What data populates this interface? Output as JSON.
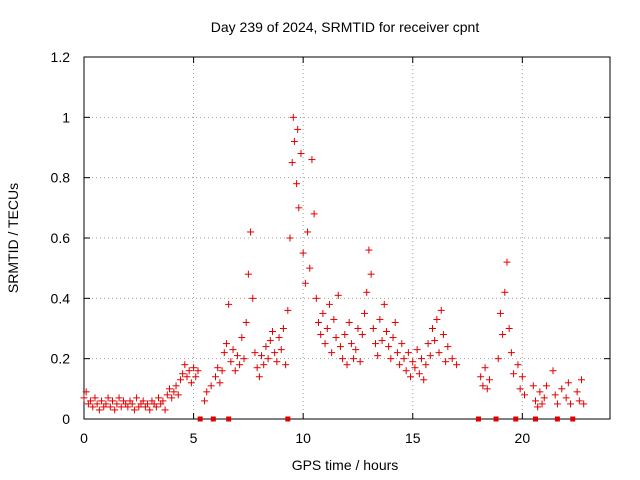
{
  "chart_data": {
    "type": "scatter",
    "title": "Day 239 of 2024, SRMTID for receiver cpnt",
    "xlabel": "GPS time / hours",
    "ylabel": "SRMTID / TECUs",
    "xlim": [
      0,
      24
    ],
    "ylim": [
      0,
      1.2
    ],
    "xticks": [
      0,
      5,
      10,
      15,
      20
    ],
    "xtick_labels": [
      "0",
      "5",
      "10",
      "15",
      "20"
    ],
    "yticks": [
      0,
      0.2,
      0.4,
      0.6,
      0.8,
      1.0,
      1.2
    ],
    "ytick_labels": [
      "0",
      "0.2",
      "0.4",
      "0.6",
      "0.8",
      "1",
      "1.2"
    ],
    "grid": true,
    "marker": "+",
    "marker_color": "#e00000",
    "series": [
      {
        "name": "SRMTID",
        "points": [
          [
            0.0,
            0.07
          ],
          [
            0.1,
            0.09
          ],
          [
            0.2,
            0.05
          ],
          [
            0.3,
            0.06
          ],
          [
            0.4,
            0.04
          ],
          [
            0.5,
            0.07
          ],
          [
            0.6,
            0.05
          ],
          [
            0.7,
            0.03
          ],
          [
            0.8,
            0.06
          ],
          [
            0.9,
            0.04
          ],
          [
            1.0,
            0.05
          ],
          [
            1.1,
            0.07
          ],
          [
            1.2,
            0.04
          ],
          [
            1.3,
            0.06
          ],
          [
            1.4,
            0.03
          ],
          [
            1.5,
            0.05
          ],
          [
            1.6,
            0.07
          ],
          [
            1.7,
            0.04
          ],
          [
            1.8,
            0.06
          ],
          [
            1.9,
            0.05
          ],
          [
            2.0,
            0.04
          ],
          [
            2.1,
            0.06
          ],
          [
            2.2,
            0.05
          ],
          [
            2.3,
            0.03
          ],
          [
            2.4,
            0.07
          ],
          [
            2.5,
            0.04
          ],
          [
            2.6,
            0.05
          ],
          [
            2.7,
            0.06
          ],
          [
            2.8,
            0.04
          ],
          [
            2.9,
            0.05
          ],
          [
            3.0,
            0.03
          ],
          [
            3.1,
            0.06
          ],
          [
            3.2,
            0.05
          ],
          [
            3.3,
            0.04
          ],
          [
            3.4,
            0.07
          ],
          [
            3.5,
            0.05
          ],
          [
            3.6,
            0.06
          ],
          [
            3.7,
            0.03
          ],
          [
            3.8,
            0.08
          ],
          [
            3.9,
            0.1
          ],
          [
            4.0,
            0.07
          ],
          [
            4.1,
            0.09
          ],
          [
            4.2,
            0.11
          ],
          [
            4.3,
            0.08
          ],
          [
            4.4,
            0.13
          ],
          [
            4.5,
            0.15
          ],
          [
            4.6,
            0.18
          ],
          [
            4.7,
            0.14
          ],
          [
            4.8,
            0.16
          ],
          [
            4.9,
            0.12
          ],
          [
            5.0,
            0.17
          ],
          [
            5.1,
            0.14
          ],
          [
            5.2,
            0.16
          ],
          [
            5.5,
            0.06
          ],
          [
            5.6,
            0.09
          ],
          [
            5.8,
            0.11
          ],
          [
            6.0,
            0.14
          ],
          [
            6.1,
            0.17
          ],
          [
            6.2,
            0.12
          ],
          [
            6.3,
            0.16
          ],
          [
            6.4,
            0.22
          ],
          [
            6.5,
            0.25
          ],
          [
            6.6,
            0.38
          ],
          [
            6.7,
            0.19
          ],
          [
            6.8,
            0.23
          ],
          [
            6.9,
            0.16
          ],
          [
            7.0,
            0.21
          ],
          [
            7.1,
            0.18
          ],
          [
            7.2,
            0.27
          ],
          [
            7.3,
            0.2
          ],
          [
            7.4,
            0.32
          ],
          [
            7.5,
            0.48
          ],
          [
            7.6,
            0.62
          ],
          [
            7.7,
            0.4
          ],
          [
            7.8,
            0.22
          ],
          [
            7.9,
            0.17
          ],
          [
            8.0,
            0.14
          ],
          [
            8.1,
            0.21
          ],
          [
            8.2,
            0.18
          ],
          [
            8.3,
            0.24
          ],
          [
            8.4,
            0.2
          ],
          [
            8.5,
            0.26
          ],
          [
            8.6,
            0.29
          ],
          [
            8.7,
            0.22
          ],
          [
            8.8,
            0.19
          ],
          [
            8.9,
            0.27
          ],
          [
            9.0,
            0.23
          ],
          [
            9.1,
            0.3
          ],
          [
            9.2,
            0.18
          ],
          [
            9.3,
            0.36
          ],
          [
            9.4,
            0.6
          ],
          [
            9.5,
            0.85
          ],
          [
            9.55,
            1.0
          ],
          [
            9.6,
            0.92
          ],
          [
            9.7,
            0.78
          ],
          [
            9.75,
            0.96
          ],
          [
            9.8,
            0.7
          ],
          [
            9.9,
            0.88
          ],
          [
            10.0,
            0.55
          ],
          [
            10.1,
            0.45
          ],
          [
            10.2,
            0.62
          ],
          [
            10.3,
            0.5
          ],
          [
            10.4,
            0.86
          ],
          [
            10.5,
            0.68
          ],
          [
            10.6,
            0.4
          ],
          [
            10.7,
            0.32
          ],
          [
            10.8,
            0.28
          ],
          [
            10.9,
            0.35
          ],
          [
            11.0,
            0.25
          ],
          [
            11.1,
            0.3
          ],
          [
            11.2,
            0.38
          ],
          [
            11.3,
            0.22
          ],
          [
            11.4,
            0.33
          ],
          [
            11.5,
            0.27
          ],
          [
            11.6,
            0.41
          ],
          [
            11.7,
            0.24
          ],
          [
            11.8,
            0.2
          ],
          [
            11.9,
            0.28
          ],
          [
            12.0,
            0.18
          ],
          [
            12.1,
            0.32
          ],
          [
            12.2,
            0.25
          ],
          [
            12.3,
            0.2
          ],
          [
            12.4,
            0.23
          ],
          [
            12.5,
            0.3
          ],
          [
            12.6,
            0.19
          ],
          [
            12.7,
            0.28
          ],
          [
            12.8,
            0.35
          ],
          [
            12.9,
            0.42
          ],
          [
            13.0,
            0.56
          ],
          [
            13.1,
            0.48
          ],
          [
            13.2,
            0.3
          ],
          [
            13.3,
            0.25
          ],
          [
            13.4,
            0.21
          ],
          [
            13.5,
            0.33
          ],
          [
            13.6,
            0.26
          ],
          [
            13.7,
            0.38
          ],
          [
            13.8,
            0.29
          ],
          [
            13.9,
            0.24
          ],
          [
            14.0,
            0.2
          ],
          [
            14.1,
            0.27
          ],
          [
            14.2,
            0.32
          ],
          [
            14.3,
            0.22
          ],
          [
            14.4,
            0.18
          ],
          [
            14.5,
            0.25
          ],
          [
            14.6,
            0.2
          ],
          [
            14.7,
            0.16
          ],
          [
            14.8,
            0.22
          ],
          [
            14.9,
            0.14
          ],
          [
            15.0,
            0.19
          ],
          [
            15.1,
            0.17
          ],
          [
            15.2,
            0.23
          ],
          [
            15.3,
            0.15
          ],
          [
            15.4,
            0.2
          ],
          [
            15.5,
            0.13
          ],
          [
            15.6,
            0.18
          ],
          [
            15.7,
            0.25
          ],
          [
            15.8,
            0.21
          ],
          [
            15.9,
            0.3
          ],
          [
            16.0,
            0.26
          ],
          [
            16.1,
            0.33
          ],
          [
            16.2,
            0.22
          ],
          [
            16.3,
            0.36
          ],
          [
            16.4,
            0.28
          ],
          [
            16.5,
            0.19
          ],
          [
            16.6,
            0.24
          ],
          [
            16.8,
            0.2
          ],
          [
            17.0,
            0.18
          ],
          [
            18.1,
            0.14
          ],
          [
            18.2,
            0.11
          ],
          [
            18.3,
            0.17
          ],
          [
            18.4,
            0.1
          ],
          [
            18.5,
            0.13
          ],
          [
            18.9,
            0.2
          ],
          [
            19.0,
            0.35
          ],
          [
            19.1,
            0.28
          ],
          [
            19.2,
            0.42
          ],
          [
            19.3,
            0.52
          ],
          [
            19.4,
            0.3
          ],
          [
            19.5,
            0.22
          ],
          [
            19.6,
            0.15
          ],
          [
            19.8,
            0.18
          ],
          [
            19.9,
            0.1
          ],
          [
            20.0,
            0.14
          ],
          [
            20.1,
            0.08
          ],
          [
            20.5,
            0.11
          ],
          [
            20.6,
            0.06
          ],
          [
            20.7,
            0.04
          ],
          [
            20.8,
            0.09
          ],
          [
            20.9,
            0.05
          ],
          [
            21.0,
            0.07
          ],
          [
            21.1,
            0.11
          ],
          [
            21.4,
            0.16
          ],
          [
            21.5,
            0.08
          ],
          [
            21.6,
            0.05
          ],
          [
            21.8,
            0.1
          ],
          [
            22.0,
            0.07
          ],
          [
            22.1,
            0.12
          ],
          [
            22.2,
            0.05
          ],
          [
            22.5,
            0.09
          ],
          [
            22.6,
            0.06
          ],
          [
            22.7,
            0.13
          ],
          [
            22.8,
            0.05
          ]
        ]
      }
    ],
    "baseline_markers_x": [
      5.3,
      5.9,
      6.6,
      9.3,
      18.0,
      18.8,
      19.7,
      20.6,
      21.6,
      22.3
    ]
  }
}
